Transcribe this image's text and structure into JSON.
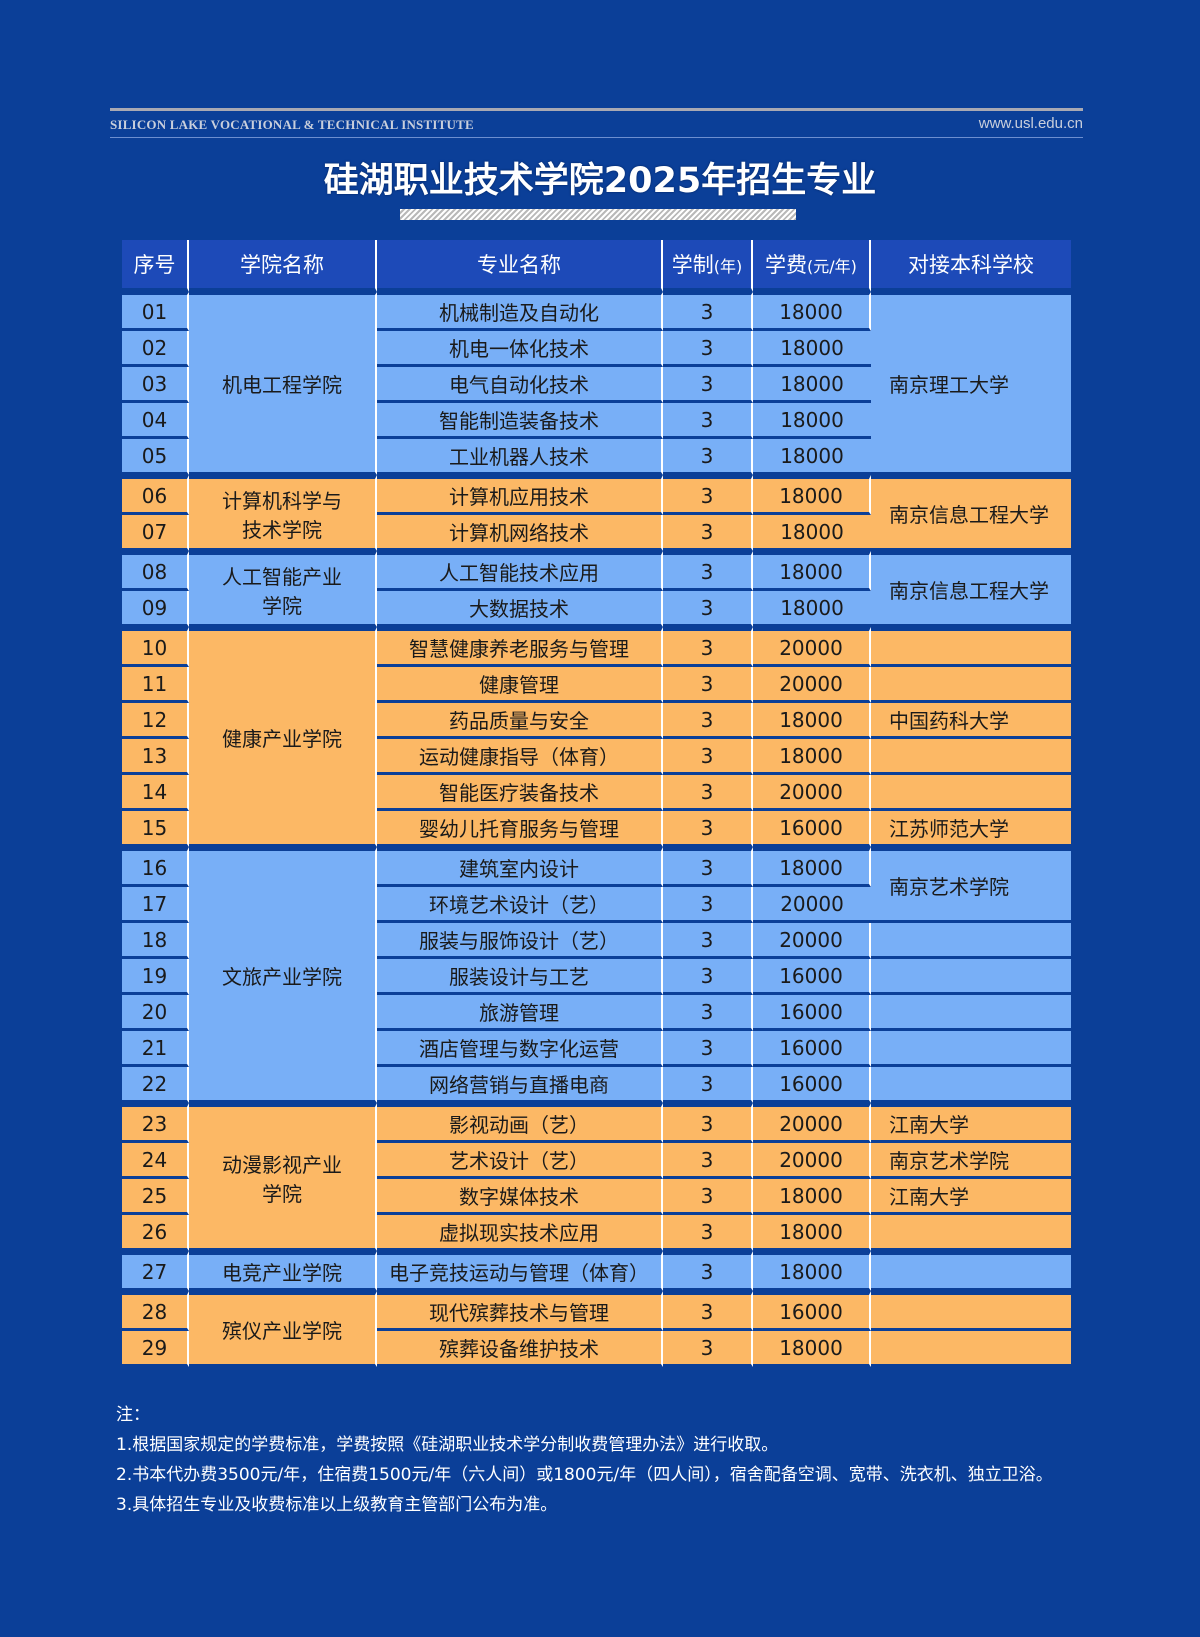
{
  "header": {
    "institute_en": "SILICON LAKE VOCATIONAL & TECHNICAL INSTITUTE",
    "url": "www.usl.edu.cn",
    "title": "硅湖职业技术学院2025年招生专业"
  },
  "colors": {
    "background": "#0b3f98",
    "header_row": "#1d4ab8",
    "blue_row": "#78aff7",
    "orange_row": "#fcb865"
  },
  "table": {
    "columns": [
      "序号",
      "学院名称",
      "专业名称",
      "学制",
      "(年)",
      "学费",
      "(元/年)",
      "对接本科学校"
    ],
    "groups": [
      {
        "college": "机电工程学院",
        "color": "#78aff7",
        "rows": [
          {
            "no": "01",
            "major": "机械制造及自动化",
            "years": "3",
            "fee": "18000"
          },
          {
            "no": "02",
            "major": "机电一体化技术",
            "years": "3",
            "fee": "18000"
          },
          {
            "no": "03",
            "major": "电气自动化技术",
            "years": "3",
            "fee": "18000"
          },
          {
            "no": "04",
            "major": "智能制造装备技术",
            "years": "3",
            "fee": "18000"
          },
          {
            "no": "05",
            "major": "工业机器人技术",
            "years": "3",
            "fee": "18000"
          }
        ],
        "schools": [
          {
            "name": "南京理工大学",
            "span": 5
          }
        ]
      },
      {
        "college": "计算机科学与技术学院",
        "color": "#fcb865",
        "rows": [
          {
            "no": "06",
            "major": "计算机应用技术",
            "years": "3",
            "fee": "18000"
          },
          {
            "no": "07",
            "major": "计算机网络技术",
            "years": "3",
            "fee": "18000"
          }
        ],
        "schools": [
          {
            "name": "南京信息工程大学",
            "span": 2
          }
        ]
      },
      {
        "college": "人工智能产业学院",
        "color": "#78aff7",
        "rows": [
          {
            "no": "08",
            "major": "人工智能技术应用",
            "years": "3",
            "fee": "18000"
          },
          {
            "no": "09",
            "major": "大数据技术",
            "years": "3",
            "fee": "18000"
          }
        ],
        "schools": [
          {
            "name": "南京信息工程大学",
            "span": 2
          }
        ]
      },
      {
        "college": "健康产业学院",
        "color": "#fcb865",
        "rows": [
          {
            "no": "10",
            "major": "智慧健康养老服务与管理",
            "years": "3",
            "fee": "20000"
          },
          {
            "no": "11",
            "major": "健康管理",
            "years": "3",
            "fee": "20000"
          },
          {
            "no": "12",
            "major": "药品质量与安全",
            "years": "3",
            "fee": "18000"
          },
          {
            "no": "13",
            "major": "运动健康指导（体育）",
            "years": "3",
            "fee": "18000"
          },
          {
            "no": "14",
            "major": "智能医疗装备技术",
            "years": "3",
            "fee": "20000"
          },
          {
            "no": "15",
            "major": "婴幼儿托育服务与管理",
            "years": "3",
            "fee": "16000"
          }
        ],
        "schools": [
          {
            "name": "",
            "span": 1
          },
          {
            "name": "",
            "span": 1
          },
          {
            "name": "中国药科大学",
            "span": 1
          },
          {
            "name": "",
            "span": 1
          },
          {
            "name": "",
            "span": 1
          },
          {
            "name": "江苏师范大学",
            "span": 1
          }
        ]
      },
      {
        "college": "文旅产业学院",
        "color": "#78aff7",
        "rows": [
          {
            "no": "16",
            "major": "建筑室内设计",
            "years": "3",
            "fee": "18000"
          },
          {
            "no": "17",
            "major": "环境艺术设计（艺）",
            "years": "3",
            "fee": "20000"
          },
          {
            "no": "18",
            "major": "服装与服饰设计（艺）",
            "years": "3",
            "fee": "20000"
          },
          {
            "no": "19",
            "major": "服装设计与工艺",
            "years": "3",
            "fee": "16000"
          },
          {
            "no": "20",
            "major": "旅游管理",
            "years": "3",
            "fee": "16000"
          },
          {
            "no": "21",
            "major": "酒店管理与数字化运营",
            "years": "3",
            "fee": "16000"
          },
          {
            "no": "22",
            "major": "网络营销与直播电商",
            "years": "3",
            "fee": "16000"
          }
        ],
        "schools": [
          {
            "name": "南京艺术学院",
            "span": 2
          },
          {
            "name": "",
            "span": 1
          },
          {
            "name": "",
            "span": 1
          },
          {
            "name": "",
            "span": 1
          },
          {
            "name": "",
            "span": 1
          },
          {
            "name": "",
            "span": 1
          }
        ]
      },
      {
        "college": "动漫影视产业学院",
        "color": "#fcb865",
        "rows": [
          {
            "no": "23",
            "major": "影视动画（艺）",
            "years": "3",
            "fee": "20000"
          },
          {
            "no": "24",
            "major": "艺术设计（艺）",
            "years": "3",
            "fee": "20000"
          },
          {
            "no": "25",
            "major": "数字媒体技术",
            "years": "3",
            "fee": "18000"
          },
          {
            "no": "26",
            "major": "虚拟现实技术应用",
            "years": "3",
            "fee": "18000"
          }
        ],
        "schools": [
          {
            "name": "江南大学",
            "span": 1
          },
          {
            "name": "南京艺术学院",
            "span": 1
          },
          {
            "name": "江南大学",
            "span": 1
          },
          {
            "name": "",
            "span": 1
          }
        ]
      },
      {
        "college": "电竞产业学院",
        "color": "#78aff7",
        "rows": [
          {
            "no": "27",
            "major": "电子竞技运动与管理（体育）",
            "years": "3",
            "fee": "18000"
          }
        ],
        "schools": [
          {
            "name": "",
            "span": 1
          }
        ]
      },
      {
        "college": "殡仪产业学院",
        "color": "#fcb865",
        "rows": [
          {
            "no": "28",
            "major": "现代殡葬技术与管理",
            "years": "3",
            "fee": "16000"
          },
          {
            "no": "29",
            "major": "殡葬设备维护技术",
            "years": "3",
            "fee": "18000"
          }
        ],
        "schools": [
          {
            "name": "",
            "span": 1
          },
          {
            "name": "",
            "span": 1
          }
        ]
      }
    ]
  },
  "notes": {
    "label": "注：",
    "items": [
      "1.根据国家规定的学费标准，学费按照《硅湖职业技术学分制收费管理办法》进行收取。",
      "2.书本代办费3500元/年，住宿费1500元/年（六人间）或1800元/年（四人间），宿舍配备空调、宽带、洗衣机、独立卫浴。",
      "3.具体招生专业及收费标准以上级教育主管部门公布为准。"
    ]
  }
}
